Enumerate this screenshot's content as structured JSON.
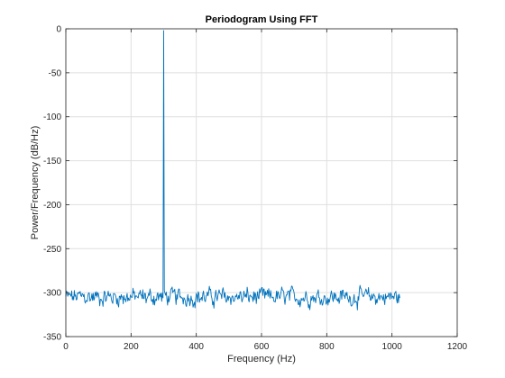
{
  "chart_data": {
    "type": "line",
    "title": "Periodogram Using FFT",
    "xlabel": "Frequency (Hz)",
    "ylabel": "Power/Frequency (dB/Hz)",
    "xlim": [
      0,
      1200
    ],
    "ylim": [
      -350,
      0
    ],
    "xticks": [
      0,
      200,
      400,
      600,
      800,
      1000,
      1200
    ],
    "xtick_labels": [
      "0",
      "200",
      "400",
      "600",
      "800",
      "1000",
      "1200"
    ],
    "yticks": [
      0,
      -50,
      -100,
      -150,
      -200,
      -250,
      -300,
      -350
    ],
    "ytick_labels": [
      "0",
      "-50",
      "-100",
      "-150",
      "-200",
      "-250",
      "-300",
      "-350"
    ],
    "grid": true,
    "line_color": "#0072bd",
    "series": [
      {
        "x_range": [
          0,
          1024
        ],
        "noise_floor": -305,
        "noise_min": -330,
        "noise_max": -280,
        "peak": {
          "x": 300,
          "y": -2
        }
      }
    ]
  }
}
